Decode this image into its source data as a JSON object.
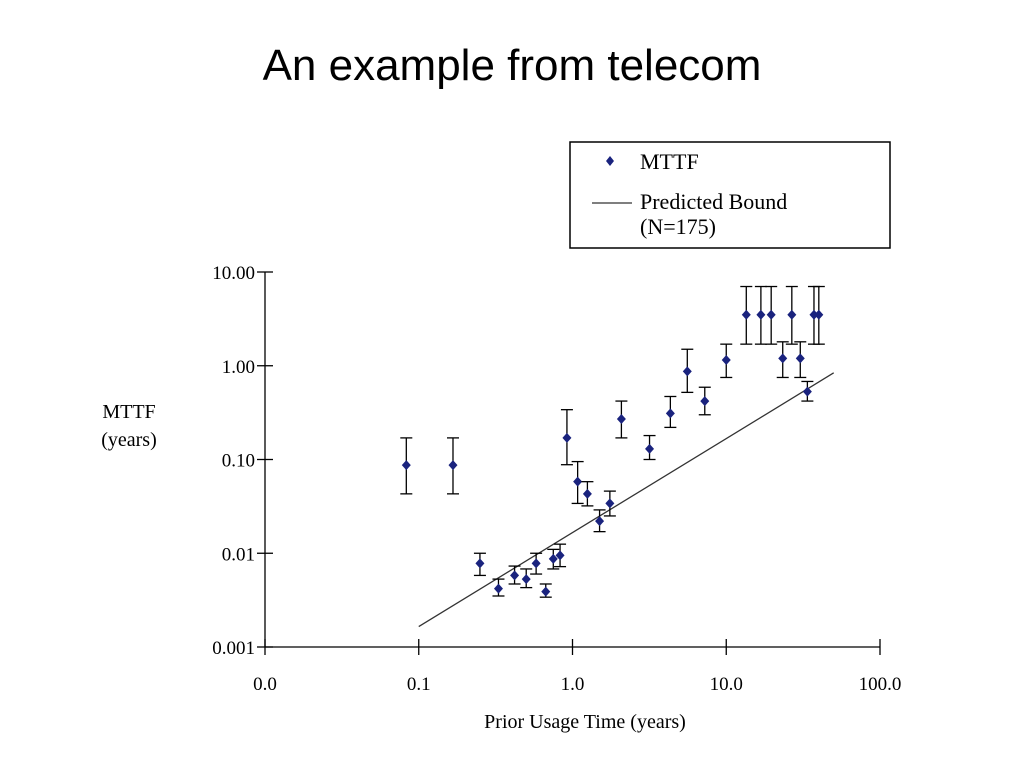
{
  "slide": {
    "title": "An example from telecom"
  },
  "chart_data": {
    "type": "scatter",
    "xlabel": "Prior Usage Time (years)",
    "ylabel": [
      "MTTF",
      "(years)"
    ],
    "x_scale": "log",
    "y_scale": "log",
    "xlim": [
      0.01,
      100
    ],
    "ylim": [
      0.001,
      10
    ],
    "x_tick_labels": [
      "0.0",
      "0.1",
      "1.0",
      "10.0",
      "100.0"
    ],
    "x_tick_values": [
      0.01,
      0.1,
      1,
      10,
      100
    ],
    "y_tick_labels": [
      "10.00",
      "1.00",
      "0.10",
      "0.01",
      "0.001"
    ],
    "y_tick_values": [
      10,
      1,
      0.1,
      0.01,
      0.001
    ],
    "grid": false,
    "legend": {
      "placement": "top-right",
      "entries": [
        {
          "label": "MTTF",
          "kind": "marker"
        },
        {
          "label_lines": [
            "Predicted Bound",
            "(N=175)"
          ],
          "kind": "line"
        }
      ]
    },
    "series": [
      {
        "name": "MTTF",
        "kind": "points-with-error-bars",
        "color": "#1a237e",
        "points": [
          {
            "x": 0.083,
            "y": 0.087,
            "lo": 0.043,
            "hi": 0.17
          },
          {
            "x": 0.167,
            "y": 0.087,
            "lo": 0.043,
            "hi": 0.17
          },
          {
            "x": 0.25,
            "y": 0.0078,
            "lo": 0.0058,
            "hi": 0.01
          },
          {
            "x": 0.33,
            "y": 0.0042,
            "lo": 0.0035,
            "hi": 0.0053
          },
          {
            "x": 0.42,
            "y": 0.0058,
            "lo": 0.0047,
            "hi": 0.0073
          },
          {
            "x": 0.5,
            "y": 0.0053,
            "lo": 0.0043,
            "hi": 0.0068
          },
          {
            "x": 0.58,
            "y": 0.0078,
            "lo": 0.006,
            "hi": 0.01
          },
          {
            "x": 0.67,
            "y": 0.0039,
            "lo": 0.0034,
            "hi": 0.0047
          },
          {
            "x": 0.75,
            "y": 0.0087,
            "lo": 0.0068,
            "hi": 0.011
          },
          {
            "x": 0.83,
            "y": 0.0095,
            "lo": 0.0072,
            "hi": 0.0125
          },
          {
            "x": 0.92,
            "y": 0.17,
            "lo": 0.088,
            "hi": 0.34
          },
          {
            "x": 1.08,
            "y": 0.058,
            "lo": 0.034,
            "hi": 0.095
          },
          {
            "x": 1.25,
            "y": 0.043,
            "lo": 0.032,
            "hi": 0.058
          },
          {
            "x": 1.5,
            "y": 0.022,
            "lo": 0.017,
            "hi": 0.029
          },
          {
            "x": 1.75,
            "y": 0.034,
            "lo": 0.025,
            "hi": 0.046
          },
          {
            "x": 2.08,
            "y": 0.27,
            "lo": 0.17,
            "hi": 0.42
          },
          {
            "x": 3.17,
            "y": 0.13,
            "lo": 0.1,
            "hi": 0.18
          },
          {
            "x": 4.33,
            "y": 0.31,
            "lo": 0.22,
            "hi": 0.47
          },
          {
            "x": 5.58,
            "y": 0.87,
            "lo": 0.52,
            "hi": 1.5
          },
          {
            "x": 7.25,
            "y": 0.42,
            "lo": 0.3,
            "hi": 0.59
          },
          {
            "x": 10.0,
            "y": 1.15,
            "lo": 0.75,
            "hi": 1.7
          },
          {
            "x": 13.5,
            "y": 3.5,
            "lo": 1.7,
            "hi": 7.0
          },
          {
            "x": 16.8,
            "y": 3.5,
            "lo": 1.7,
            "hi": 7.0
          },
          {
            "x": 19.6,
            "y": 3.5,
            "lo": 1.7,
            "hi": 7.0
          },
          {
            "x": 23.3,
            "y": 1.2,
            "lo": 0.75,
            "hi": 1.8
          },
          {
            "x": 26.7,
            "y": 3.5,
            "lo": 1.7,
            "hi": 7.0
          },
          {
            "x": 30.3,
            "y": 1.2,
            "lo": 0.75,
            "hi": 1.8
          },
          {
            "x": 33.7,
            "y": 0.53,
            "lo": 0.42,
            "hi": 0.68
          },
          {
            "x": 37.2,
            "y": 3.5,
            "lo": 1.7,
            "hi": 7.0
          },
          {
            "x": 40.0,
            "y": 3.5,
            "lo": 1.7,
            "hi": 7.0
          }
        ]
      },
      {
        "name": "Predicted Bound (N=175)",
        "kind": "line",
        "color": "#333333",
        "points": [
          {
            "x": 0.1,
            "y": 0.00165
          },
          {
            "x": 50,
            "y": 0.84
          }
        ]
      }
    ]
  }
}
